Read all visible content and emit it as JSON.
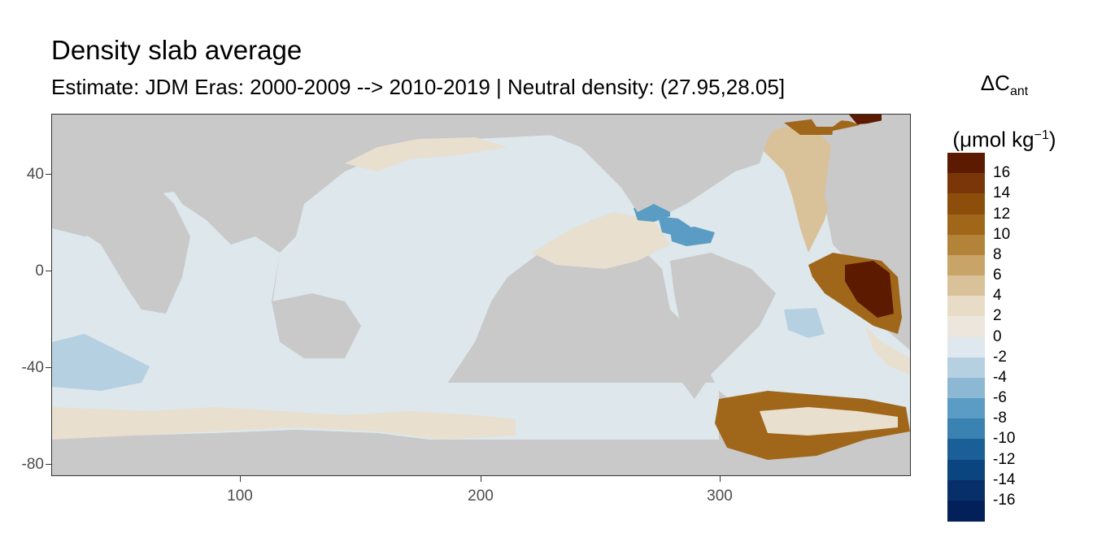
{
  "title": "Density slab average",
  "subtitle": "Estimate: JDM Eras: 2000-2009 --> 2010-2019 | Neutral density: (27.95,28.05]",
  "legend": {
    "symbol": "ΔC",
    "subscript": "ant",
    "unit_prefix": "(μmol kg",
    "unit_sup": "−1",
    "unit_suffix": ")",
    "labels": [
      "16",
      "14",
      "12",
      "10",
      "8",
      "6",
      "4",
      "2",
      "0",
      "-2",
      "-4",
      "-6",
      "-8",
      "-10",
      "-12",
      "-14",
      "-16"
    ],
    "colors": [
      "#5c1a00",
      "#7a3508",
      "#8c4e0a",
      "#a0671a",
      "#b4833a",
      "#c8a468",
      "#d9c199",
      "#e8dcc7",
      "#ece6dd",
      "#dfe8ee",
      "#b5d0e1",
      "#8db8d3",
      "#5b9cc4",
      "#3a82b2",
      "#1b5f98",
      "#0b457f",
      "#07306b",
      "#04205a"
    ]
  },
  "axes": {
    "x_ticks": [
      "100",
      "200",
      "300"
    ],
    "y_ticks": [
      "40",
      "0",
      "-40",
      "-80"
    ]
  },
  "map_colors": {
    "land": "#c9c9c9",
    "no_data": "#ffffff",
    "neutral": "#dde7ec",
    "light_tan": "#e8dfcf",
    "tan": "#d9c199",
    "brown": "#a0671a",
    "dark_brown": "#5c1a00",
    "light_blue": "#b5d0e1",
    "blue": "#5b9cc4"
  }
}
